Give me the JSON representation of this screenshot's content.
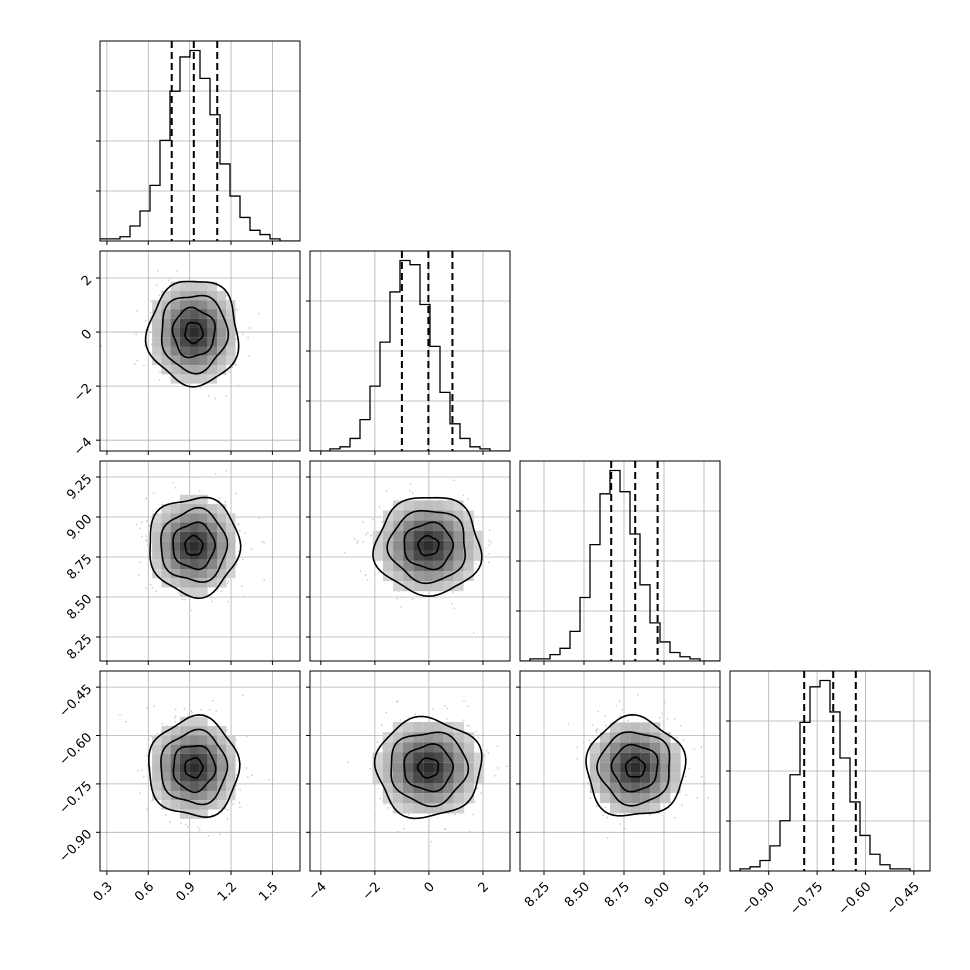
{
  "chart_data": {
    "type": "corner",
    "title": "",
    "n_params": 4,
    "params": [
      {
        "range": [
          0.25,
          1.7
        ],
        "ticks": [
          0.3,
          0.6,
          0.9,
          1.2,
          1.5
        ],
        "tick_labels": [
          "0.3",
          "0.6",
          "0.9",
          "1.2",
          "1.5"
        ],
        "quantiles": [
          0.77,
          0.93,
          1.1
        ],
        "mean": 0.93,
        "sd": 0.16,
        "hist": [
          1,
          1,
          2,
          7,
          14,
          26,
          47,
          70,
          86,
          89,
          76,
          59,
          36,
          21,
          11,
          5,
          3,
          1,
          0,
          0
        ]
      },
      {
        "range": [
          -4.4,
          3.0
        ],
        "ticks": [
          -4,
          -2,
          0,
          2
        ],
        "tick_labels": [
          "−4",
          "−2",
          "0",
          "2"
        ],
        "quantiles": [
          -1.0,
          -0.02,
          0.87
        ],
        "mean": -0.02,
        "sd": 0.95,
        "hist": [
          0,
          0,
          1,
          2,
          6,
          15,
          31,
          52,
          76,
          91,
          89,
          70,
          50,
          28,
          13,
          6,
          2,
          1,
          0,
          0
        ]
      },
      {
        "range": [
          8.1,
          9.35
        ],
        "ticks": [
          8.25,
          8.5,
          8.75,
          9.0,
          9.25
        ],
        "tick_labels": [
          "8.25",
          "8.50",
          "8.75",
          "9.00",
          "9.25"
        ],
        "quantiles": [
          8.67,
          8.82,
          8.96
        ],
        "mean": 8.82,
        "sd": 0.15,
        "hist": [
          0,
          1,
          1,
          3,
          6,
          14,
          30,
          55,
          79,
          90,
          80,
          60,
          36,
          18,
          9,
          4,
          2,
          1,
          0,
          0
        ]
      },
      {
        "range": [
          -1.02,
          -0.4
        ],
        "ticks": [
          -0.9,
          -0.75,
          -0.6,
          -0.45
        ],
        "tick_labels": [
          "−0.90",
          "−0.75",
          "−0.60",
          "−0.45"
        ],
        "quantiles": [
          -0.79,
          -0.7,
          -0.63
        ],
        "mean": -0.7,
        "sd": 0.075,
        "hist": [
          0,
          1,
          2,
          5,
          12,
          24,
          46,
          71,
          88,
          91,
          76,
          54,
          33,
          17,
          8,
          3,
          1,
          1,
          0,
          0
        ]
      }
    ],
    "grid": true,
    "colors": {
      "scatter": "#bdbdbd",
      "contour": "#000000",
      "hist_line": "#000000",
      "gridline": "#b0b0b0"
    }
  }
}
